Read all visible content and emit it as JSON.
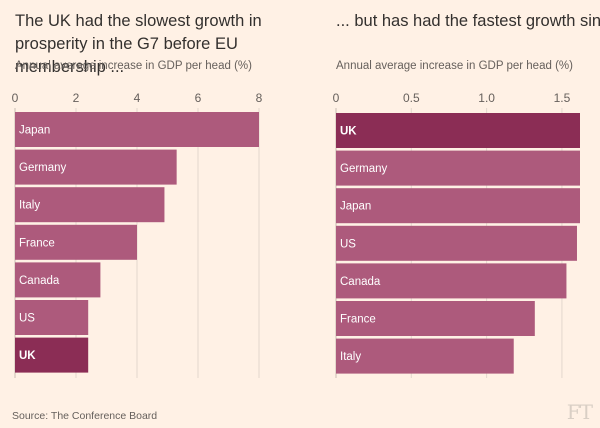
{
  "source": "Source: The Conference Board",
  "logo_text": "FT",
  "colors": {
    "background": "#fff1e5",
    "bar": "#ad5a7c",
    "bar_highlight": "#8b2d55",
    "gridline": "#e3d8cd",
    "baseline": "#c9bdb2",
    "bar_label": "#ffffff",
    "tick": "#66605c"
  },
  "chart_data": [
    {
      "type": "bar",
      "orientation": "horizontal",
      "title": "The UK had the slowest growth in prosperity in the G7 before EU membership ...",
      "subtitle": "Annual average increase in GDP per head (%)",
      "categories": [
        "Japan",
        "Germany",
        "Italy",
        "France",
        "Canada",
        "US",
        "UK"
      ],
      "values": [
        8.0,
        5.3,
        4.9,
        4.0,
        2.8,
        2.4,
        2.4
      ],
      "highlight": "UK",
      "xlim": [
        0,
        8
      ],
      "xticks": [
        0,
        2,
        4,
        6,
        8
      ],
      "tick_labels": [
        "0",
        "2",
        "4",
        "6",
        "8"
      ],
      "grid": true
    },
    {
      "type": "bar",
      "orientation": "horizontal",
      "title": "... but has had the fastest growth since",
      "subtitle": "Annual average increase in GDP per head (%)",
      "categories": [
        "UK",
        "Germany",
        "Japan",
        "US",
        "Canada",
        "France",
        "Italy"
      ],
      "values": [
        1.66,
        1.64,
        1.62,
        1.6,
        1.53,
        1.32,
        1.18
      ],
      "highlight": "UK",
      "xlim": [
        0,
        1.62
      ],
      "xticks": [
        0,
        0.5,
        1.0,
        1.5
      ],
      "tick_labels": [
        "0",
        "0.5",
        "1.0",
        "1.5"
      ],
      "grid": true
    }
  ]
}
